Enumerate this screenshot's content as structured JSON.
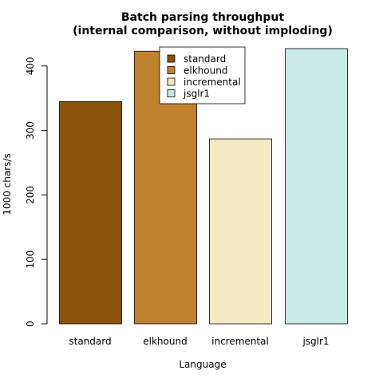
{
  "chart_data": {
    "type": "bar",
    "title_line1": "Batch parsing throughput",
    "title_line2": "(internal comparison, without imploding)",
    "xlabel": "Language",
    "ylabel": "1000 chars/s",
    "categories": [
      "standard",
      "elkhound",
      "incremental",
      "jsglr1"
    ],
    "values": [
      345,
      423,
      287,
      427
    ],
    "colors": [
      "#8C510A",
      "#BF812D",
      "#F6E8C3",
      "#C7EAE5"
    ],
    "ylim": [
      0,
      430
    ],
    "yticks": [
      0,
      100,
      200,
      300,
      400
    ],
    "ytick_labels": [
      "0",
      "100",
      "200",
      "300",
      "400"
    ],
    "legend": {
      "position": "top-center",
      "entries": [
        "standard",
        "elkhound",
        "incremental",
        "jsglr1"
      ]
    },
    "grid": false
  }
}
